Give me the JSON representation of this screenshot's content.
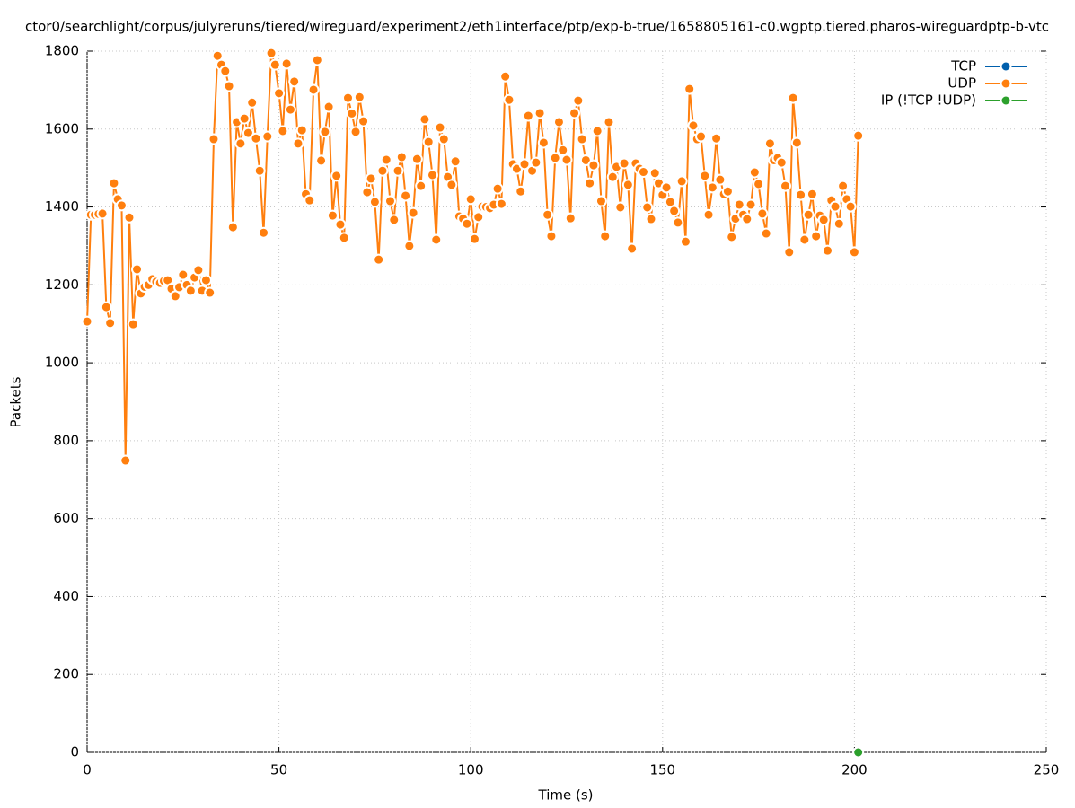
{
  "chart_data": {
    "type": "line",
    "title": "ctor0/searchlight/corpus/julyreruns/tiered/wireguard/experiment2/eth1interface/ptp/exp-b-true/1658805161-c0.wgptp.tiered.pharos-wireguardptp-b-vtc",
    "x_label": "Time (s)",
    "y_label": "Packets",
    "xlim": [
      0,
      250
    ],
    "xticks": [
      0,
      50,
      100,
      150,
      200,
      250
    ],
    "ylim": [
      0,
      1800
    ],
    "yticks": [
      0,
      200,
      400,
      600,
      800,
      1000,
      1200,
      1400,
      1600,
      1800
    ],
    "grid": true,
    "legend": "top-right",
    "series": [
      {
        "name": "TCP",
        "color": "#0060ad",
        "x": [],
        "values": []
      },
      {
        "name": "UDP",
        "color": "#ff7f0e",
        "x": [
          0,
          1,
          2,
          3,
          4,
          5,
          6,
          7,
          8,
          9,
          10,
          11,
          12,
          13,
          14,
          15,
          16,
          17,
          18,
          19,
          20,
          21,
          22,
          23,
          24,
          25,
          26,
          27,
          28,
          29,
          30,
          31,
          32,
          33,
          34,
          35,
          36,
          37,
          38,
          39,
          40,
          41,
          42,
          43,
          44,
          45,
          46,
          47,
          48,
          49,
          50,
          51,
          52,
          53,
          54,
          55,
          56,
          57,
          58,
          59,
          60,
          61,
          62,
          63,
          64,
          65,
          66,
          67,
          68,
          69,
          70,
          71,
          72,
          73,
          74,
          75,
          76,
          77,
          78,
          79,
          80,
          81,
          82,
          83,
          84,
          85,
          86,
          87,
          88,
          89,
          90,
          91,
          92,
          93,
          94,
          95,
          96,
          97,
          98,
          99,
          100,
          101,
          102,
          103,
          104,
          105,
          106,
          107,
          108,
          109,
          110,
          111,
          112,
          113,
          114,
          115,
          116,
          117,
          118,
          119,
          120,
          121,
          122,
          123,
          124,
          125,
          126,
          127,
          128,
          129,
          130,
          131,
          132,
          133,
          134,
          135,
          136,
          137,
          138,
          139,
          140,
          141,
          142,
          143,
          144,
          145,
          146,
          147,
          148,
          149,
          150,
          151,
          152,
          153,
          154,
          155,
          156,
          157,
          158,
          159,
          160,
          161,
          162,
          163,
          164,
          165,
          166,
          167,
          168,
          169,
          170,
          171,
          172,
          173,
          174,
          175,
          176,
          177,
          178,
          179,
          180,
          181,
          182,
          183,
          184,
          185,
          186,
          187,
          188,
          189,
          190,
          191,
          192,
          193,
          194,
          195,
          196,
          197,
          198,
          199,
          200,
          201
        ],
        "values": [
          1106,
          1380,
          1380,
          1382,
          1383,
          1143,
          1102,
          1461,
          1420,
          1404,
          749,
          1373,
          1099,
          1240,
          1178,
          1195,
          1200,
          1215,
          1208,
          1205,
          1210,
          1212,
          1190,
          1171,
          1194,
          1226,
          1200,
          1185,
          1219,
          1238,
          1185,
          1212,
          1180,
          1574,
          1788,
          1765,
          1749,
          1710,
          1348,
          1618,
          1563,
          1627,
          1590,
          1668,
          1576,
          1493,
          1334,
          1581,
          1795,
          1765,
          1692,
          1595,
          1768,
          1650,
          1722,
          1563,
          1597,
          1433,
          1417,
          1701,
          1777,
          1519,
          1593,
          1657,
          1378,
          1480,
          1355,
          1321,
          1680,
          1640,
          1593,
          1682,
          1620,
          1438,
          1473,
          1413,
          1265,
          1493,
          1521,
          1415,
          1367,
          1493,
          1528,
          1429,
          1300,
          1385,
          1523,
          1454,
          1625,
          1567,
          1482,
          1316,
          1604,
          1574,
          1477,
          1457,
          1517,
          1376,
          1370,
          1357,
          1420,
          1318,
          1374,
          1401,
          1400,
          1397,
          1406,
          1447,
          1408,
          1735,
          1675,
          1510,
          1498,
          1440,
          1510,
          1634,
          1493,
          1514,
          1641,
          1565,
          1380,
          1325,
          1526,
          1618,
          1546,
          1521,
          1371,
          1641,
          1673,
          1574,
          1520,
          1461,
          1507,
          1595,
          1415,
          1325,
          1618,
          1477,
          1503,
          1399,
          1512,
          1457,
          1293,
          1512,
          1498,
          1490,
          1399,
          1369,
          1487,
          1461,
          1431,
          1450,
          1413,
          1390,
          1360,
          1466,
          1311,
          1703,
          1609,
          1574,
          1581,
          1480,
          1380,
          1450,
          1576,
          1470,
          1433,
          1440,
          1323,
          1370,
          1406,
          1380,
          1369,
          1406,
          1489,
          1459,
          1383,
          1332,
          1563,
          1520,
          1526,
          1514,
          1454,
          1284,
          1680,
          1565,
          1431,
          1316,
          1380,
          1433,
          1325,
          1378,
          1367,
          1288,
          1417,
          1401,
          1357,
          1454,
          1420,
          1401,
          1284,
          1583
        ]
      },
      {
        "name": "IP (!TCP  !UDP)",
        "color": "#2ca02c",
        "x": [
          201
        ],
        "values": [
          0
        ]
      }
    ]
  }
}
